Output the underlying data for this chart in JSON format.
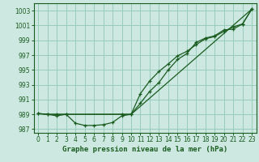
{
  "title": "Graphe pression niveau de la mer (hPa)",
  "bg_color": "#cce8e0",
  "grid_color": "#99ccbb",
  "line_color": "#1a5c20",
  "xlim": [
    -0.5,
    23.5
  ],
  "ylim": [
    986.5,
    1004.0
  ],
  "yticks": [
    987,
    989,
    991,
    993,
    995,
    997,
    999,
    1001,
    1003
  ],
  "xticks": [
    0,
    1,
    2,
    3,
    4,
    5,
    6,
    7,
    8,
    9,
    10,
    11,
    12,
    13,
    14,
    15,
    16,
    17,
    18,
    19,
    20,
    21,
    22,
    23
  ],
  "line1_x": [
    0,
    1,
    2,
    3,
    4,
    5,
    6,
    7,
    8,
    9,
    10,
    11,
    12,
    13,
    14,
    15,
    16,
    17,
    18,
    19,
    20,
    21,
    22,
    23
  ],
  "line1_y": [
    989.1,
    989.0,
    988.8,
    989.0,
    987.8,
    987.5,
    987.5,
    987.6,
    987.9,
    988.8,
    989.0,
    990.5,
    992.1,
    993.3,
    995.0,
    996.4,
    997.2,
    998.7,
    999.3,
    999.6,
    1000.4,
    1000.5,
    1001.2,
    1003.2
  ],
  "line2_x": [
    0,
    1,
    2,
    3,
    4,
    5,
    6,
    7,
    8,
    9,
    10,
    23
  ],
  "line2_y": [
    989.1,
    989.0,
    989.0,
    989.0,
    989.0,
    989.0,
    989.0,
    989.0,
    989.0,
    989.0,
    989.0,
    1003.2
  ],
  "line3_x": [
    0,
    1,
    2,
    3,
    9,
    10,
    11,
    12,
    13,
    14,
    15,
    16,
    17,
    18,
    19,
    20,
    21,
    22,
    23
  ],
  "line3_y": [
    989.1,
    989.0,
    989.0,
    989.0,
    989.0,
    989.0,
    991.8,
    993.5,
    994.8,
    995.8,
    996.9,
    997.5,
    998.4,
    999.2,
    999.5,
    1000.2,
    1000.8,
    1001.2,
    1003.2
  ],
  "tick_fontsize": 5.5,
  "title_fontsize": 6.5
}
